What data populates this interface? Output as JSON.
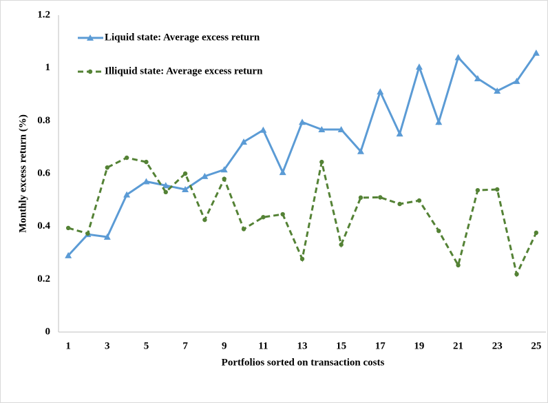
{
  "chart_data": {
    "type": "line",
    "xlabel": "Portfolios sorted on transaction costs",
    "ylabel": "Monthly excess return (%)",
    "categories": [
      1,
      null,
      3,
      null,
      5,
      null,
      7,
      null,
      9,
      null,
      11,
      null,
      13,
      null,
      15,
      null,
      17,
      null,
      19,
      null,
      21,
      null,
      23,
      null,
      25
    ],
    "series": [
      {
        "name": "Liquid state: Average excess return",
        "color": "#5b9bd5",
        "marker": "triangle",
        "dash": "solid",
        "values": [
          0.29,
          0.37,
          0.36,
          0.52,
          0.57,
          0.555,
          0.54,
          0.59,
          0.615,
          0.72,
          0.765,
          0.605,
          0.795,
          0.767,
          0.767,
          0.684,
          0.91,
          0.751,
          1.004,
          0.795,
          1.04,
          0.96,
          0.913,
          0.95,
          1.057
        ]
      },
      {
        "name": "Illiquid state: Average excess return",
        "color": "#548235",
        "marker": "circle",
        "dash": "dashed",
        "values": [
          0.394,
          0.373,
          0.623,
          0.66,
          0.644,
          0.53,
          0.6,
          0.425,
          0.58,
          0.39,
          0.435,
          0.446,
          0.277,
          0.644,
          0.331,
          0.509,
          0.51,
          0.485,
          0.498,
          0.383,
          0.253,
          0.537,
          0.54,
          0.219,
          0.376
        ]
      }
    ],
    "ylim": [
      0,
      1.2
    ],
    "yticks": [
      0,
      0.2,
      0.4,
      0.6,
      0.8,
      1,
      1.2
    ],
    "grid": false,
    "legend": "upper left"
  }
}
